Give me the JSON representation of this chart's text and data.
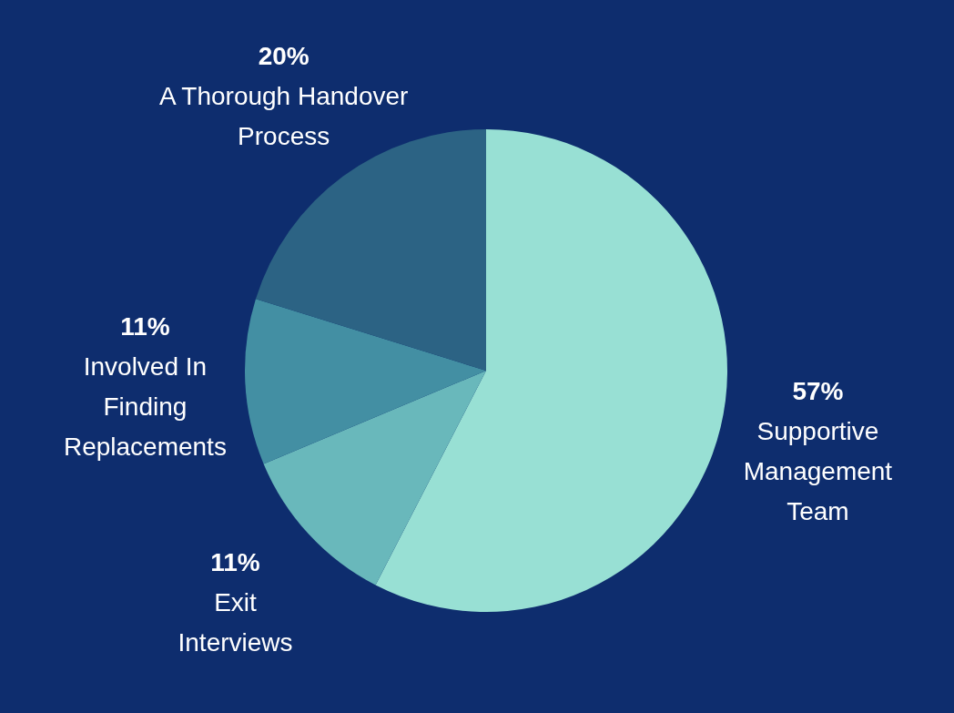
{
  "chart_data": {
    "type": "pie",
    "categories": [
      "Supportive Management Team",
      "Exit Interviews",
      "Involved In Finding Replacements",
      "A Thorough Handover Process"
    ],
    "values": [
      57,
      11,
      11,
      20
    ],
    "colors": [
      "#98e0d4",
      "#69b8bb",
      "#438fa3",
      "#2c6384"
    ],
    "value_labels": [
      "57%",
      "11%",
      "11%",
      "20%"
    ]
  }
}
